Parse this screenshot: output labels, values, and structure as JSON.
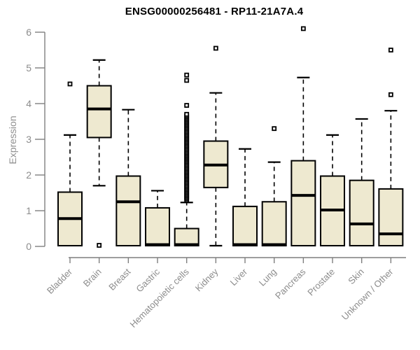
{
  "title": "ENSG00000256481 - RP11-21A7A.4",
  "chart_data": {
    "type": "boxplot",
    "title": "ENSG00000256481 - RP11-21A7A.4",
    "xlabel": "",
    "ylabel": "Expression",
    "ylim": [
      0,
      6
    ],
    "yticks": [
      0,
      1,
      2,
      3,
      4,
      5,
      6
    ],
    "grid": false,
    "legend": "none",
    "categories": [
      "Bladder",
      "Brain",
      "Breast",
      "Gastric",
      "Hematopoietic cells",
      "Kidney",
      "Liver",
      "Lung",
      "Pancreas",
      "Prostate",
      "Skin",
      "Unknown / Other"
    ],
    "boxes": [
      {
        "category": "Bladder",
        "whisker_low": null,
        "q1": 0.02,
        "median": 0.78,
        "q3": 1.52,
        "whisker_high": 3.12,
        "outliers": [
          4.55
        ]
      },
      {
        "category": "Brain",
        "whisker_low": 1.7,
        "q1": 3.05,
        "median": 3.85,
        "q3": 4.5,
        "whisker_high": 5.22,
        "outliers": [
          0.03
        ]
      },
      {
        "category": "Breast",
        "whisker_low": null,
        "q1": 0.02,
        "median": 1.25,
        "q3": 1.97,
        "whisker_high": 3.83,
        "outliers": []
      },
      {
        "category": "Gastric",
        "whisker_low": null,
        "q1": 0.02,
        "median": 0.05,
        "q3": 1.08,
        "whisker_high": 1.56,
        "outliers": []
      },
      {
        "category": "Hematopoietic cells",
        "whisker_low": null,
        "q1": 0.02,
        "median": 0.05,
        "q3": 0.5,
        "whisker_high": 1.23,
        "outliers": [
          1.3,
          1.34,
          1.38,
          1.42,
          1.46,
          1.5,
          1.54,
          1.58,
          1.62,
          1.66,
          1.7,
          1.74,
          1.78,
          1.82,
          1.86,
          1.9,
          1.94,
          1.98,
          2.02,
          2.06,
          2.1,
          2.14,
          2.18,
          2.22,
          2.26,
          2.3,
          2.34,
          2.38,
          2.42,
          2.46,
          2.5,
          2.54,
          2.58,
          2.62,
          2.66,
          2.7,
          2.74,
          2.78,
          2.82,
          2.86,
          2.9,
          2.94,
          2.98,
          3.02,
          3.06,
          3.1,
          3.14,
          3.18,
          3.22,
          3.26,
          3.3,
          3.34,
          3.38,
          3.42,
          3.46,
          3.5,
          3.54,
          3.58,
          3.62,
          3.66,
          3.7,
          3.95,
          4.65,
          4.8
        ]
      },
      {
        "category": "Kidney",
        "whisker_low": 0.02,
        "q1": 1.65,
        "median": 2.28,
        "q3": 2.95,
        "whisker_high": 4.3,
        "outliers": [
          5.55
        ]
      },
      {
        "category": "Liver",
        "whisker_low": null,
        "q1": 0.02,
        "median": 0.05,
        "q3": 1.12,
        "whisker_high": 2.73,
        "outliers": []
      },
      {
        "category": "Lung",
        "whisker_low": null,
        "q1": 0.02,
        "median": 0.05,
        "q3": 1.25,
        "whisker_high": 2.36,
        "outliers": [
          3.3
        ]
      },
      {
        "category": "Pancreas",
        "whisker_low": null,
        "q1": 0.02,
        "median": 1.43,
        "q3": 2.4,
        "whisker_high": 4.73,
        "outliers": [
          6.1
        ]
      },
      {
        "category": "Prostate",
        "whisker_low": null,
        "q1": 0.02,
        "median": 1.02,
        "q3": 1.97,
        "whisker_high": 3.12,
        "outliers": []
      },
      {
        "category": "Skin",
        "whisker_low": null,
        "q1": 0.02,
        "median": 0.63,
        "q3": 1.85,
        "whisker_high": 3.57,
        "outliers": []
      },
      {
        "category": "Unknown / Other",
        "whisker_low": null,
        "q1": 0.02,
        "median": 0.35,
        "q3": 1.61,
        "whisker_high": 3.8,
        "outliers": [
          4.25,
          5.5
        ]
      }
    ],
    "colors": {
      "box_fill": "#EEE9D0",
      "box_border": "#000000",
      "median": "#000000",
      "axis_line": "#7F7F7F",
      "tick_text": "#8C8C8C",
      "title_text": "#000000",
      "background": "#FFFFFF"
    }
  }
}
